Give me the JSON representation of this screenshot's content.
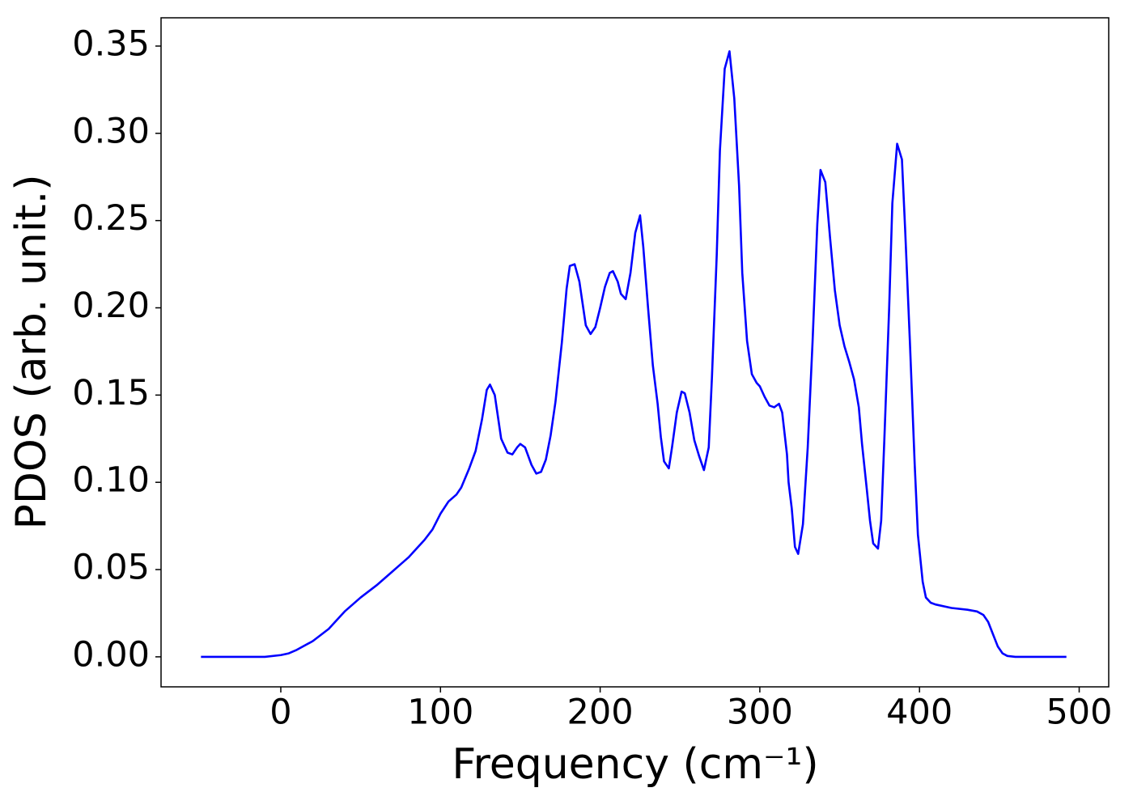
{
  "chart_data": {
    "type": "line",
    "x_label": "Frequency (cm⁻¹)",
    "y_label": "PDOS (arb. unit.)",
    "color": "#0000ff",
    "grid": false,
    "xlim": [
      -75,
      518.5
    ],
    "ylim": [
      -0.0172,
      0.3662
    ],
    "xticks": [
      0,
      100,
      200,
      300,
      400,
      500
    ],
    "yticks": [
      {
        "value": 0,
        "label": "0.00"
      },
      {
        "value": 0.05,
        "label": "0.05"
      },
      {
        "value": 0.1,
        "label": "0.10"
      },
      {
        "value": 0.15,
        "label": "0.15"
      },
      {
        "value": 0.2,
        "label": "0.20"
      },
      {
        "value": 0.25,
        "label": "0.25"
      },
      {
        "value": 0.3,
        "label": "0.30"
      },
      {
        "value": 0.35,
        "label": "0.35"
      }
    ],
    "x": [
      -50,
      -10,
      0,
      5,
      10,
      20,
      30,
      40,
      50,
      60,
      70,
      75,
      80,
      90,
      95,
      100,
      105,
      110,
      113,
      118,
      122,
      126,
      129,
      131,
      134,
      138,
      142,
      145,
      148,
      150,
      153,
      157,
      160,
      163,
      166,
      169,
      172,
      176,
      179,
      181,
      184,
      187,
      191,
      194,
      197,
      200,
      203,
      206,
      208,
      211,
      213,
      216,
      219,
      222,
      225,
      227,
      230,
      233,
      236,
      238,
      240,
      243,
      245,
      248,
      251,
      253,
      256,
      259,
      262,
      265,
      268,
      270,
      273,
      275,
      278,
      281,
      284,
      287,
      289,
      292,
      295,
      298,
      300,
      303,
      306,
      309,
      312,
      314,
      317,
      318,
      320,
      322,
      324,
      327,
      330,
      333,
      336,
      338,
      341,
      344,
      347,
      350,
      353,
      356,
      359,
      362,
      364,
      367,
      369,
      371,
      374,
      376,
      378,
      381,
      383,
      386,
      389,
      391,
      394,
      397,
      399,
      402,
      404,
      407,
      410,
      420,
      430,
      436,
      440,
      443,
      446,
      449,
      452,
      455,
      460,
      492
    ],
    "values": [
      0,
      0,
      0.001,
      0.002,
      0.004,
      0.009,
      0.016,
      0.026,
      0.034,
      0.041,
      0.049,
      0.053,
      0.057,
      0.067,
      0.073,
      0.082,
      0.089,
      0.093,
      0.097,
      0.108,
      0.118,
      0.136,
      0.153,
      0.156,
      0.15,
      0.125,
      0.117,
      0.116,
      0.12,
      0.122,
      0.12,
      0.11,
      0.105,
      0.106,
      0.113,
      0.127,
      0.146,
      0.18,
      0.211,
      0.224,
      0.225,
      0.215,
      0.19,
      0.185,
      0.189,
      0.2,
      0.212,
      0.22,
      0.221,
      0.215,
      0.208,
      0.205,
      0.22,
      0.243,
      0.253,
      0.235,
      0.2,
      0.167,
      0.145,
      0.126,
      0.112,
      0.108,
      0.12,
      0.14,
      0.152,
      0.151,
      0.14,
      0.124,
      0.115,
      0.107,
      0.12,
      0.16,
      0.23,
      0.29,
      0.337,
      0.347,
      0.32,
      0.27,
      0.22,
      0.181,
      0.162,
      0.157,
      0.155,
      0.149,
      0.144,
      0.143,
      0.145,
      0.14,
      0.116,
      0.1,
      0.085,
      0.063,
      0.059,
      0.076,
      0.12,
      0.18,
      0.248,
      0.279,
      0.272,
      0.24,
      0.21,
      0.19,
      0.178,
      0.169,
      0.159,
      0.143,
      0.122,
      0.096,
      0.078,
      0.065,
      0.062,
      0.078,
      0.125,
      0.2,
      0.26,
      0.294,
      0.285,
      0.245,
      0.18,
      0.11,
      0.07,
      0.043,
      0.034,
      0.031,
      0.03,
      0.028,
      0.027,
      0.026,
      0.024,
      0.02,
      0.013,
      0.006,
      0.002,
      0.0005,
      0,
      0
    ]
  }
}
